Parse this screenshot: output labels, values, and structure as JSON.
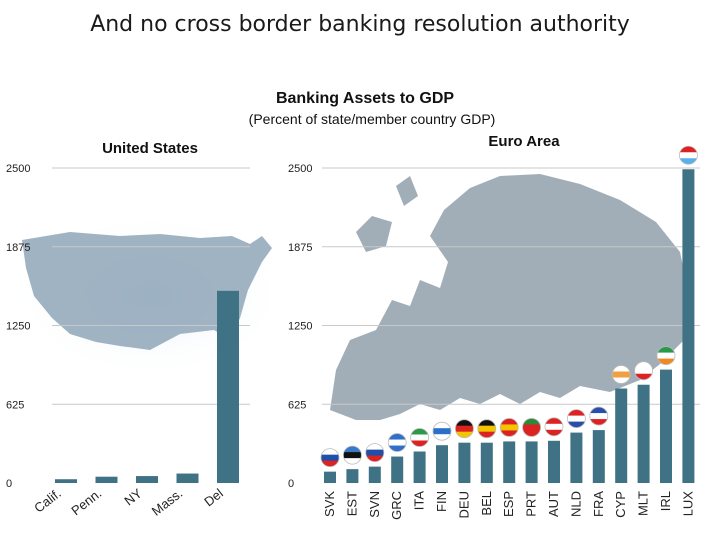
{
  "slide_title": "And no cross border banking resolution authority",
  "chart_data": {
    "title": "Banking Assets to GDP",
    "subtitle": "(Percent of state/member country GDP)",
    "colors": {
      "bar": "#3f7284",
      "map_us": "#8fa6b8",
      "map_eu": "#8a9aa6"
    },
    "panels": [
      {
        "type": "bar",
        "title": "United States",
        "categories": [
          "Calif.",
          "Penn.",
          "NY",
          "Mass.",
          "Del"
        ],
        "values": [
          30,
          50,
          55,
          75,
          1525
        ],
        "ylim": [
          0,
          2500
        ],
        "yticks": [
          0,
          625,
          1250,
          1875,
          2500
        ],
        "grid": true
      },
      {
        "type": "bar",
        "title": "Euro Area",
        "categories": [
          "SVK",
          "EST",
          "SVN",
          "GRC",
          "ITA",
          "FIN",
          "DEU",
          "BEL",
          "ESP",
          "PRT",
          "AUT",
          "NLD",
          "FRA",
          "CYP",
          "MLT",
          "IRL",
          "LUX"
        ],
        "values": [
          90,
          110,
          130,
          210,
          250,
          300,
          320,
          320,
          330,
          330,
          335,
          400,
          420,
          750,
          780,
          900,
          2490
        ],
        "ylim": [
          0,
          2500
        ],
        "yticks": [
          0,
          625,
          1250,
          1875,
          2500
        ],
        "grid": true
      }
    ]
  }
}
